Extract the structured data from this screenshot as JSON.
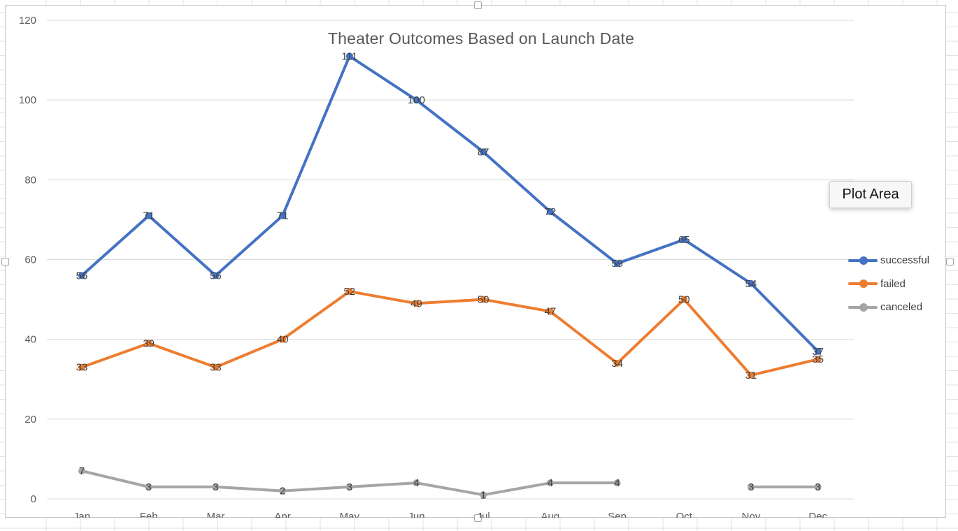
{
  "chart_data": {
    "type": "line",
    "title": "Theater Outcomes Based on Launch Date",
    "categories": [
      "Jan",
      "Feb",
      "Mar",
      "Apr",
      "May",
      "Jun",
      "Jul",
      "Aug",
      "Sep",
      "Oct",
      "Nov",
      "Dec"
    ],
    "series": [
      {
        "name": "successful",
        "color": "#4472c4",
        "values": [
          56,
          71,
          56,
          71,
          111,
          100,
          87,
          72,
          59,
          65,
          54,
          37
        ]
      },
      {
        "name": "failed",
        "color": "#ed7d31",
        "values": [
          33,
          39,
          33,
          40,
          52,
          49,
          50,
          47,
          34,
          50,
          31,
          35
        ]
      },
      {
        "name": "canceled",
        "color": "#a5a5a5",
        "values": [
          7,
          3,
          3,
          2,
          3,
          4,
          1,
          4,
          4,
          null,
          3,
          3
        ]
      }
    ],
    "ylim": [
      0,
      120
    ],
    "yticks": [
      0,
      20,
      40,
      60,
      80,
      100,
      120
    ],
    "grid": true,
    "legend": "right",
    "data_labels": true,
    "xlabel": "",
    "ylabel": ""
  },
  "ui": {
    "tooltip": "Plot Area"
  }
}
